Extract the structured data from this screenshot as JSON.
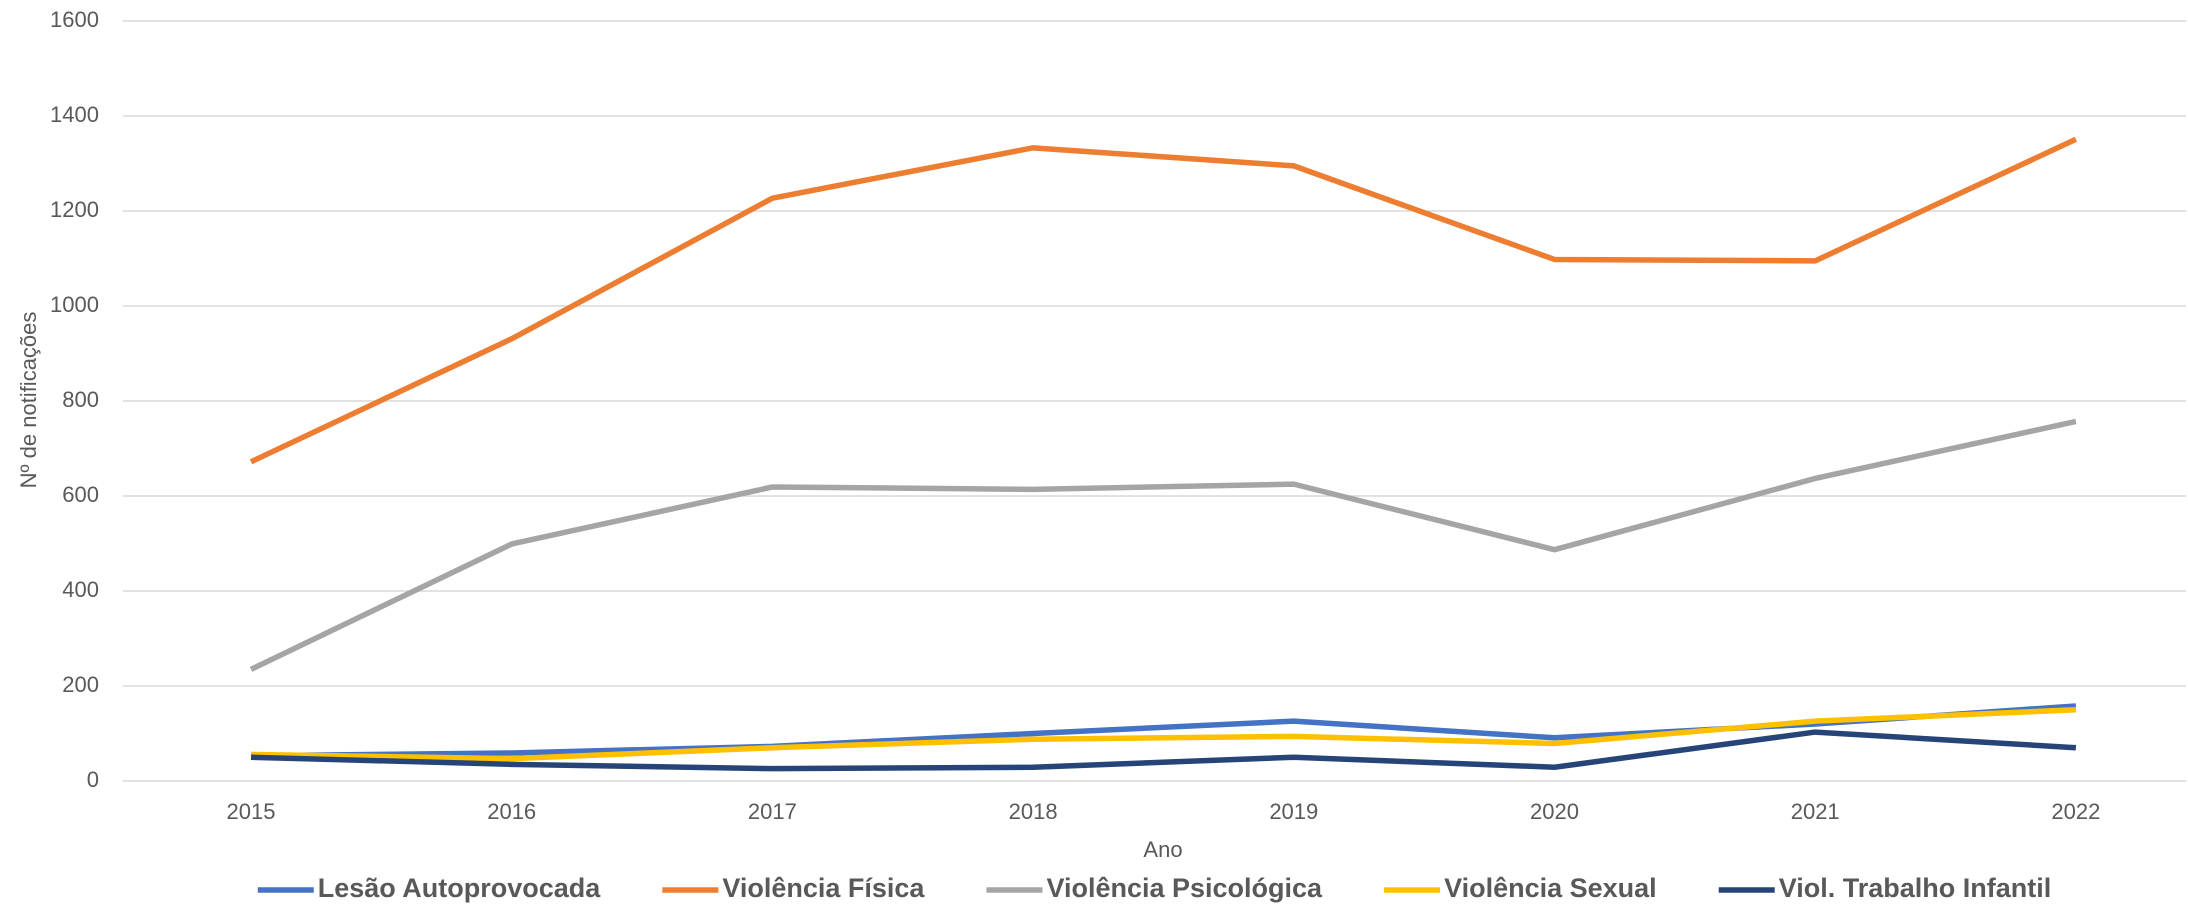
{
  "chart_data": {
    "type": "line",
    "x_label": "Ano",
    "y_label": "Nº de notificações",
    "categories": [
      "2015",
      "2016",
      "2017",
      "2018",
      "2019",
      "2020",
      "2021",
      "2022"
    ],
    "series": [
      {
        "name": "Lesão Autoprovocada",
        "color": "#4472c4",
        "values": [
          53,
          59,
          73,
          100,
          126,
          91,
          120,
          158
        ]
      },
      {
        "name": "Violência Física",
        "color": "#ed7d31",
        "values": [
          672,
          931,
          1227,
          1333,
          1295,
          1098,
          1095,
          1351
        ]
      },
      {
        "name": "Violência Psicológica",
        "color": "#a5a5a5",
        "values": [
          235,
          499,
          619,
          614,
          625,
          487,
          637,
          757
        ]
      },
      {
        "name": "Violência Sexual",
        "color": "#ffc000",
        "values": [
          56,
          47,
          70,
          88,
          94,
          79,
          126,
          150
        ]
      },
      {
        "name": "Viol. Trabalho Infantil",
        "color": "#264478",
        "values": [
          50,
          35,
          26,
          29,
          50,
          29,
          103,
          70
        ]
      }
    ],
    "ylim": [
      0,
      1600
    ],
    "yticks": [
      0,
      200,
      400,
      600,
      800,
      1000,
      1200,
      1400,
      1600
    ],
    "grid": true,
    "legend": "bottom"
  }
}
